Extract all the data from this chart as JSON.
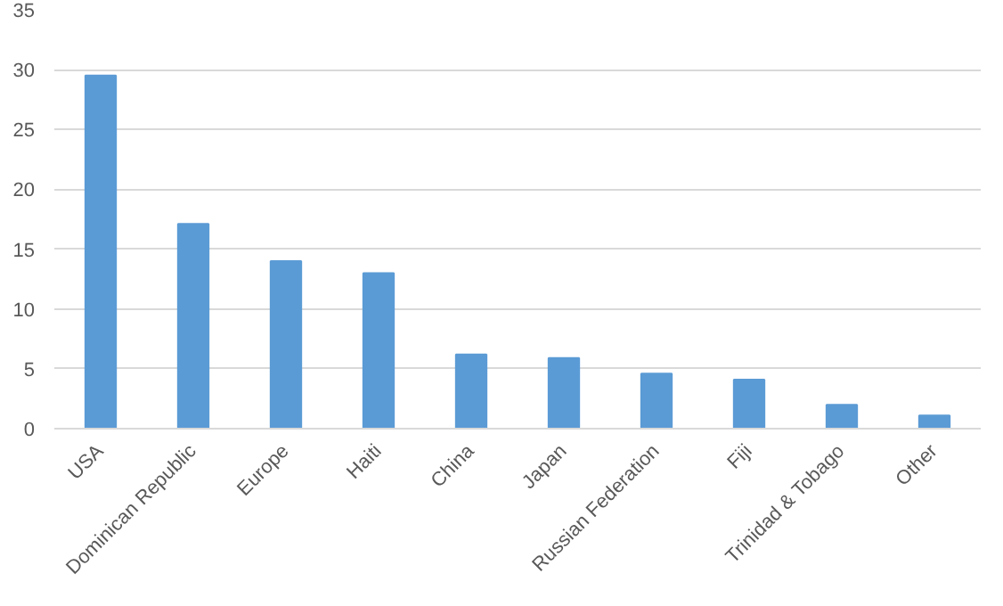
{
  "chart_data": {
    "type": "bar",
    "categories": [
      "USA",
      "Dominican Republic",
      "Europe",
      "Haiti",
      "China",
      "Japan",
      "Russian Federation",
      "Fiji",
      "Trinidad & Tobago",
      "Other"
    ],
    "values": [
      29.5,
      17.1,
      14,
      13,
      6.2,
      5.9,
      4.6,
      4.1,
      2,
      1.1
    ],
    "color": "#5b9bd5",
    "ylim": [
      0,
      35
    ],
    "yticks": [
      0,
      5,
      10,
      15,
      20,
      25,
      30,
      35
    ],
    "grid": "y"
  }
}
